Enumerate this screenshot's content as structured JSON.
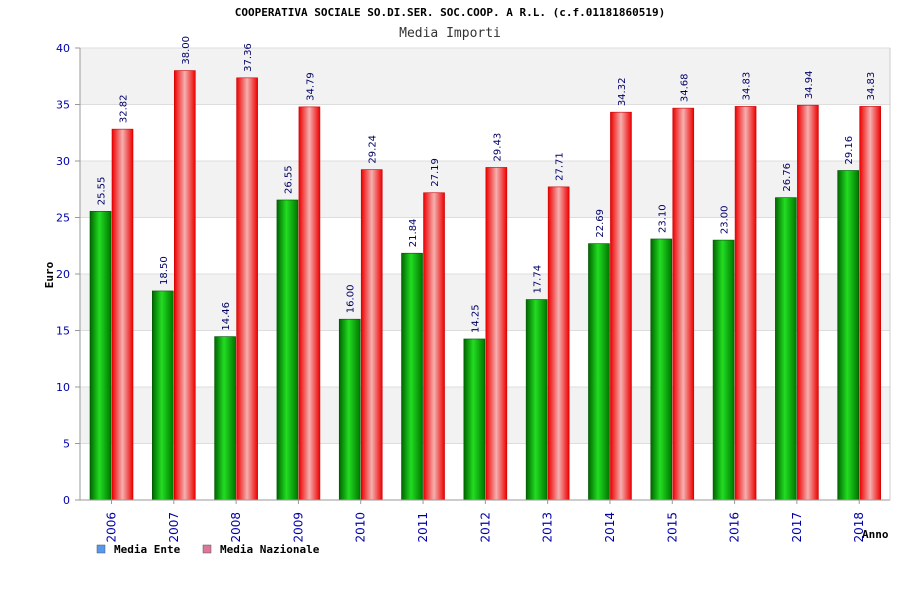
{
  "chart_data": {
    "type": "bar",
    "title": "COOPERATIVA SOCIALE SO.DI.SER. SOC.COOP. A R.L. (c.f.01181860519)",
    "subtitle": "Media Importi",
    "xlabel": "Anno",
    "ylabel": "Euro",
    "ylim": [
      0,
      40
    ],
    "yticks": [
      "0",
      "5",
      "10",
      "15",
      "20",
      "25",
      "30",
      "35",
      "40"
    ],
    "categories": [
      "2006",
      "2007",
      "2008",
      "2009",
      "2010",
      "2011",
      "2012",
      "2013",
      "2014",
      "2015",
      "2016",
      "2017",
      "2018"
    ],
    "series": [
      {
        "name": "Media Ente",
        "values": [
          25.55,
          18.5,
          14.46,
          26.55,
          16.0,
          21.84,
          14.25,
          17.74,
          22.69,
          23.1,
          23.0,
          26.76,
          29.16
        ],
        "labels": [
          "25.55",
          "18.50",
          "14.46",
          "26.55",
          "16.00",
          "21.84",
          "14.25",
          "17.74",
          "22.69",
          "23.10",
          "23.00",
          "26.76",
          "29.16"
        ],
        "color": "#00aa00",
        "legend_color": "#5599ee"
      },
      {
        "name": "Media Nazionale",
        "values": [
          32.82,
          38.0,
          37.36,
          34.79,
          29.24,
          27.19,
          29.43,
          27.71,
          34.32,
          34.68,
          34.83,
          34.94,
          34.83
        ],
        "labels": [
          "32.82",
          "38.00",
          "37.36",
          "34.79",
          "29.24",
          "27.19",
          "29.43",
          "27.71",
          "34.32",
          "34.68",
          "34.83",
          "34.94",
          "34.83"
        ],
        "color": "#ee0000",
        "legend_color": "#dd7799"
      }
    ],
    "grid": true,
    "legend_position": "bottom-left"
  }
}
